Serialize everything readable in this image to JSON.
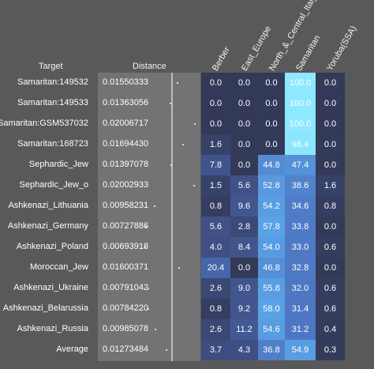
{
  "chart_data": {
    "type": "heatmap",
    "headers": {
      "target": "Target",
      "distance": "Distance"
    },
    "columns": [
      "Berber",
      "East_Europe",
      "North_&_Central_Italy",
      "Samaritan",
      "Yoruba(SSA)"
    ],
    "rows": [
      {
        "label": "Samaritan:149532",
        "distance": "0.01550333",
        "values": [
          0.0,
          0.0,
          0.0,
          100.0,
          0.0
        ]
      },
      {
        "label": "Samaritan:149533",
        "distance": "0.01363056",
        "values": [
          0.0,
          0.0,
          0.0,
          100.0,
          0.0
        ]
      },
      {
        "label": "Samaritan:GSM537032",
        "distance": "0.02006717",
        "values": [
          0.0,
          0.0,
          0.0,
          100.0,
          0.0
        ]
      },
      {
        "label": "Samaritan:168723",
        "distance": "0.01694430",
        "values": [
          1.6,
          0.0,
          0.0,
          98.4,
          0.0
        ]
      },
      {
        "label": "Sephardic_Jew",
        "distance": "0.01397078",
        "values": [
          7.8,
          0.0,
          44.8,
          47.4,
          0.0
        ]
      },
      {
        "label": "Sephardic_Jew_o",
        "distance": "0.02002933",
        "values": [
          1.5,
          5.6,
          52.8,
          38.6,
          1.6
        ]
      },
      {
        "label": "Ashkenazi_Lithuania",
        "distance": "0.00958231",
        "values": [
          0.8,
          9.6,
          54.2,
          34.6,
          0.8
        ]
      },
      {
        "label": "Ashkenazi_Germany",
        "distance": "0.00727886",
        "values": [
          5.6,
          2.8,
          57.8,
          33.8,
          0.0
        ]
      },
      {
        "label": "Ashkenazi_Poland",
        "distance": "0.00693918",
        "values": [
          4.0,
          8.4,
          54.0,
          33.0,
          0.6
        ]
      },
      {
        "label": "Moroccan_Jew",
        "distance": "0.01600371",
        "values": [
          20.4,
          0.0,
          46.8,
          32.8,
          0.0
        ]
      },
      {
        "label": "Ashkenazi_Ukraine",
        "distance": "0.00791042",
        "values": [
          2.6,
          9.0,
          55.8,
          32.0,
          0.6
        ]
      },
      {
        "label": "Ashkenazi_Belarussia",
        "distance": "0.00784220",
        "values": [
          0.8,
          9.2,
          58.0,
          31.4,
          0.6
        ]
      },
      {
        "label": "Ashkenazi_Russia",
        "distance": "0.00985078",
        "values": [
          2.6,
          11.2,
          54.6,
          31.2,
          0.4
        ]
      },
      {
        "label": "Average",
        "distance": "0.01273484",
        "values": [
          3.7,
          4.3,
          36.8,
          54.9,
          0.3
        ]
      }
    ],
    "colors": {
      "background": "#595959",
      "distance_panel": "#737373",
      "scale_low": "#333a57",
      "scale_high": "#8ee8ff"
    }
  }
}
